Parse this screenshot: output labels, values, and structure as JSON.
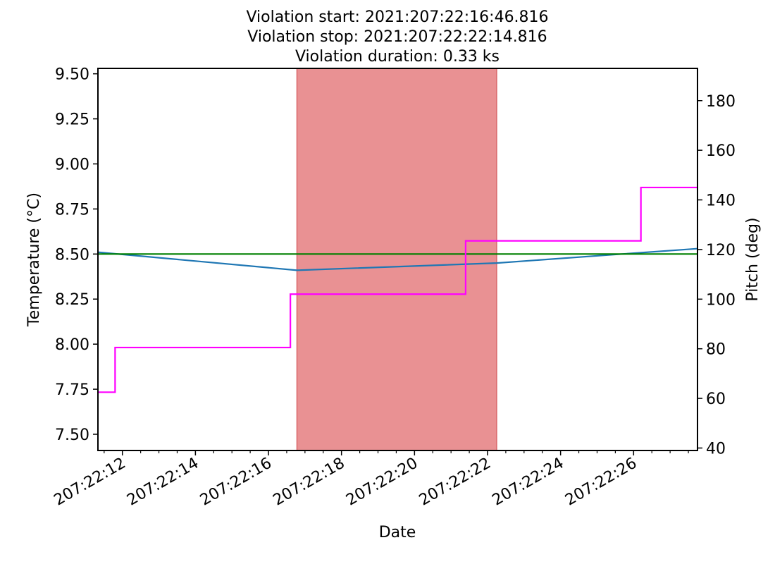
{
  "chart_data": {
    "type": "line",
    "title_lines": [
      "Violation start: 2021:207:22:16:46.816",
      "Violation stop: 2021:207:22:22:14.816",
      "Violation duration: 0.33 ks"
    ],
    "xlabel": "Date",
    "ylabel_left": "Temperature ($^\\circ$C)",
    "ylabel_left_display": "Temperature (°C)",
    "ylabel_right": "Pitch (deg)",
    "x_unit": "minutes (day 207, hour 22)",
    "xlim": [
      11.33,
      27.75
    ],
    "x_ticks": [
      12,
      14,
      16,
      18,
      20,
      22,
      24,
      26
    ],
    "x_tick_labels": [
      "207:22:12",
      "207:22:14",
      "207:22:16",
      "207:22:18",
      "207:22:20",
      "207:22:22",
      "207:22:24",
      "207:22:26"
    ],
    "x_minor_ticks": [
      11.5,
      12.5,
      13,
      13.5,
      14.5,
      15,
      15.5,
      16.5,
      17,
      17.5,
      18.5,
      19,
      19.5,
      20.5,
      21,
      21.5,
      22.5,
      23,
      23.5,
      24.5,
      25,
      25.5,
      26.5,
      27,
      27.5
    ],
    "ylim_left": [
      7.41,
      9.53
    ],
    "y_ticks_left": [
      7.5,
      7.75,
      8.0,
      8.25,
      8.5,
      8.75,
      9.0,
      9.25,
      9.5
    ],
    "y_tick_labels_left": [
      "7.50",
      "7.75",
      "8.00",
      "8.25",
      "8.50",
      "8.75",
      "9.00",
      "9.25",
      "9.50"
    ],
    "ylim_right": [
      39,
      193
    ],
    "y_ticks_right": [
      40,
      60,
      80,
      100,
      120,
      140,
      160,
      180
    ],
    "y_tick_labels_right": [
      "40",
      "60",
      "80",
      "100",
      "120",
      "140",
      "160",
      "180"
    ],
    "violation_span": {
      "x_start": 16.78,
      "x_stop": 22.25,
      "color": "#e99193"
    },
    "series": [
      {
        "name": "temperature",
        "axis": "left",
        "color": "#1f77b4",
        "x": [
          11.33,
          16.78,
          22.25,
          27.75
        ],
        "y": [
          8.51,
          8.41,
          8.45,
          8.53
        ]
      },
      {
        "name": "limit",
        "axis": "left",
        "color": "#008000",
        "x": [
          11.33,
          27.75
        ],
        "y": [
          8.5,
          8.5
        ]
      },
      {
        "name": "pitch",
        "axis": "right",
        "color": "#ff00ff",
        "step": true,
        "x": [
          11.33,
          11.8,
          11.8,
          16.6,
          16.6,
          21.4,
          21.4,
          26.2,
          26.2,
          27.75
        ],
        "y": [
          62.5,
          62.5,
          80.5,
          80.5,
          102,
          102,
          123.5,
          123.5,
          145,
          145
        ]
      }
    ]
  }
}
